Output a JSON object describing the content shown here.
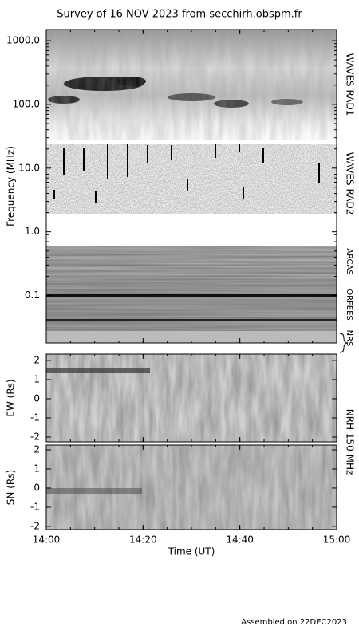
{
  "title": "Survey of 16 NOV 2023 from secchirh.obspm.fr",
  "footer": "Assembled on 22DEC2023",
  "chart_data": [
    {
      "type": "spectrogram",
      "ylabel": "Frequency (MHz)",
      "log_y": true,
      "ylim": [
        0.018,
        1500
      ],
      "yticks": [
        0.1,
        {
          "value": 1,
          "label": "1.0"
        },
        {
          "value": 10,
          "label": "10.0"
        },
        {
          "value": 100,
          "label": "100.0"
        },
        {
          "value": 1000,
          "label": "1000.0"
        }
      ],
      "instrument_labels": [
        "WAVES RAD1",
        "WAVES RAD2",
        "ARCAS",
        "ORFEES",
        "NRS"
      ]
    },
    {
      "type": "image",
      "ylabel": "EW (Rs)",
      "ylim": [
        -2.25,
        2.33
      ],
      "yticks": [
        -2,
        -1,
        0,
        1,
        2
      ],
      "right_label": "NRH 150 MHz"
    },
    {
      "type": "image",
      "ylabel": "SN (Rs)",
      "ylim": [
        -2.17,
        2.25
      ],
      "yticks": [
        -2,
        -1,
        0,
        1,
        2
      ],
      "xlabel": "Time (UT)",
      "xticks": [
        "14:00",
        "14:20",
        "14:40",
        "15:00"
      ]
    }
  ]
}
